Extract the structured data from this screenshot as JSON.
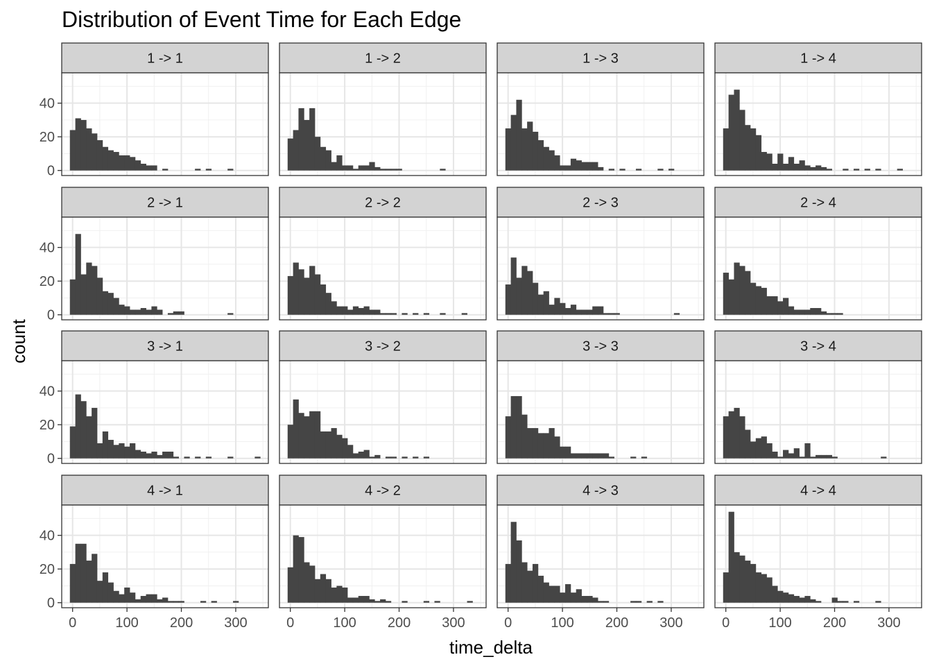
{
  "chart_data": {
    "type": "bar",
    "subtype": "histogram facet grid",
    "title": "Distribution of Event Time for Each Edge",
    "xlabel": "time_delta",
    "ylabel": "count",
    "xlim": [
      -20,
      360
    ],
    "ylim": [
      -3,
      58
    ],
    "x_ticks": [
      0,
      100,
      200,
      300
    ],
    "y_ticks": [
      0,
      20,
      40
    ],
    "bin_width": 10,
    "bin_starts": [
      -5,
      5,
      15,
      25,
      35,
      45,
      55,
      65,
      75,
      85,
      95,
      105,
      115,
      125,
      135,
      145,
      155,
      165,
      175,
      185,
      195,
      205,
      215,
      225,
      235,
      245,
      255,
      265,
      275,
      285,
      295,
      305,
      315,
      325,
      335
    ],
    "grid": true,
    "facet_layout": {
      "rows": 4,
      "cols": 4
    },
    "bar_color": "#454545",
    "strip_color": "#d3d3d3",
    "panels": [
      {
        "label": "1 -> 1",
        "counts": [
          24,
          31,
          30,
          25,
          22,
          18,
          14,
          12,
          11,
          9,
          9,
          8,
          6,
          4,
          3,
          3,
          0,
          1,
          0,
          0,
          0,
          0,
          0,
          1,
          0,
          1,
          0,
          0,
          0,
          1,
          0,
          0,
          0,
          0,
          0
        ]
      },
      {
        "label": "1 -> 2",
        "counts": [
          19,
          24,
          37,
          30,
          37,
          20,
          14,
          12,
          5,
          9,
          3,
          3,
          1,
          3,
          3,
          5,
          2,
          1,
          1,
          1,
          1,
          0,
          0,
          0,
          0,
          0,
          0,
          0,
          1,
          0,
          0,
          0,
          0,
          0,
          0
        ]
      },
      {
        "label": "1 -> 3",
        "counts": [
          25,
          33,
          42,
          25,
          29,
          23,
          18,
          14,
          12,
          9,
          3,
          3,
          7,
          6,
          5,
          5,
          5,
          2,
          0,
          1,
          0,
          1,
          0,
          0,
          1,
          0,
          0,
          0,
          1,
          0,
          1,
          0,
          0,
          0,
          0
        ]
      },
      {
        "label": "1 -> 4",
        "counts": [
          25,
          45,
          48,
          36,
          27,
          25,
          21,
          11,
          10,
          4,
          10,
          4,
          8,
          4,
          6,
          3,
          2,
          3,
          2,
          1,
          0,
          0,
          1,
          0,
          1,
          0,
          1,
          0,
          1,
          0,
          0,
          0,
          1,
          0,
          0
        ]
      },
      {
        "label": "2 -> 1",
        "counts": [
          21,
          48,
          24,
          31,
          29,
          22,
          14,
          13,
          10,
          6,
          5,
          3,
          3,
          4,
          3,
          5,
          3,
          0,
          1,
          2,
          2,
          0,
          0,
          0,
          0,
          0,
          0,
          0,
          0,
          1,
          0,
          0,
          0,
          0,
          0
        ]
      },
      {
        "label": "2 -> 2",
        "counts": [
          23,
          31,
          27,
          22,
          29,
          24,
          18,
          13,
          8,
          5,
          5,
          3,
          5,
          4,
          5,
          3,
          3,
          1,
          1,
          1,
          0,
          1,
          0,
          1,
          0,
          1,
          0,
          0,
          1,
          0,
          0,
          0,
          1,
          0,
          0
        ]
      },
      {
        "label": "2 -> 3",
        "counts": [
          18,
          34,
          22,
          29,
          26,
          19,
          12,
          14,
          6,
          10,
          7,
          4,
          6,
          3,
          3,
          3,
          5,
          5,
          1,
          1,
          1,
          0,
          0,
          0,
          0,
          0,
          0,
          0,
          0,
          0,
          0,
          1,
          0,
          0,
          0
        ]
      },
      {
        "label": "2 -> 4",
        "counts": [
          25,
          21,
          31,
          29,
          26,
          19,
          17,
          16,
          11,
          11,
          8,
          10,
          5,
          3,
          3,
          3,
          4,
          4,
          2,
          1,
          1,
          1,
          0,
          0,
          0,
          0,
          0,
          0,
          0,
          0,
          0,
          0,
          0,
          0,
          0
        ]
      },
      {
        "label": "3 -> 1",
        "counts": [
          19,
          38,
          34,
          25,
          30,
          9,
          16,
          11,
          8,
          9,
          7,
          9,
          5,
          4,
          3,
          4,
          2,
          4,
          4,
          1,
          0,
          1,
          0,
          1,
          0,
          1,
          0,
          0,
          0,
          1,
          0,
          0,
          0,
          0,
          1
        ]
      },
      {
        "label": "3 -> 2",
        "counts": [
          20,
          35,
          27,
          25,
          28,
          28,
          16,
          16,
          18,
          14,
          12,
          8,
          3,
          4,
          5,
          1,
          2,
          0,
          1,
          1,
          0,
          1,
          0,
          1,
          0,
          1,
          0,
          0,
          0,
          0,
          0,
          0,
          0,
          0,
          0
        ]
      },
      {
        "label": "3 -> 3",
        "counts": [
          25,
          37,
          37,
          26,
          18,
          18,
          15,
          15,
          18,
          13,
          7,
          7,
          3,
          3,
          3,
          3,
          3,
          3,
          3,
          1,
          0,
          0,
          0,
          1,
          0,
          1,
          0,
          0,
          0,
          0,
          0,
          0,
          0,
          0,
          0
        ]
      },
      {
        "label": "3 -> 4",
        "counts": [
          25,
          28,
          30,
          25,
          17,
          10,
          12,
          13,
          9,
          4,
          1,
          5,
          3,
          6,
          1,
          9,
          1,
          2,
          2,
          2,
          1,
          0,
          0,
          0,
          0,
          0,
          0,
          0,
          0,
          1,
          0,
          0,
          0,
          0,
          0
        ]
      },
      {
        "label": "4 -> 1",
        "counts": [
          23,
          35,
          35,
          25,
          29,
          13,
          18,
          12,
          7,
          5,
          9,
          6,
          2,
          4,
          5,
          5,
          2,
          3,
          1,
          1,
          1,
          0,
          0,
          0,
          1,
          0,
          1,
          0,
          0,
          0,
          1,
          0,
          0,
          0,
          0
        ]
      },
      {
        "label": "4 -> 2",
        "counts": [
          21,
          40,
          39,
          24,
          22,
          14,
          17,
          14,
          9,
          10,
          9,
          3,
          3,
          4,
          4,
          2,
          1,
          2,
          1,
          0,
          0,
          1,
          0,
          0,
          0,
          1,
          0,
          1,
          0,
          0,
          0,
          0,
          0,
          1,
          0
        ]
      },
      {
        "label": "4 -> 3",
        "counts": [
          23,
          48,
          37,
          24,
          19,
          23,
          16,
          12,
          10,
          10,
          6,
          11,
          6,
          8,
          4,
          4,
          3,
          1,
          1,
          0,
          0,
          0,
          0,
          1,
          1,
          0,
          1,
          0,
          1,
          0,
          0,
          0,
          0,
          0,
          0
        ]
      },
      {
        "label": "4 -> 4",
        "counts": [
          18,
          54,
          30,
          28,
          25,
          23,
          18,
          17,
          15,
          10,
          7,
          6,
          5,
          4,
          3,
          4,
          2,
          1,
          0,
          0,
          3,
          1,
          1,
          0,
          1,
          0,
          0,
          0,
          1,
          0,
          0,
          0,
          0,
          0,
          0
        ]
      }
    ]
  }
}
